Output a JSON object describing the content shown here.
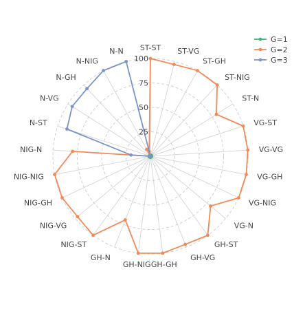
{
  "chart_data": {
    "type": "radar",
    "categories": [
      "ST-ST",
      "ST-VG",
      "ST-GH",
      "ST-NIG",
      "ST-N",
      "VG-ST",
      "VG-VG",
      "VG-GH",
      "VG-NIG",
      "VG-N",
      "GH-ST",
      "GH-VG",
      "GH-GH",
      "GH-NIG",
      "GH-N",
      "NIG-ST",
      "NIG-VG",
      "NIG-GH",
      "NIG-NIG",
      "NIG-N",
      "N-ST",
      "N-VG",
      "N-GH",
      "N-NIG",
      "N-N"
    ],
    "radial_ticks": [
      25,
      50,
      75,
      100
    ],
    "radial_range": [
      0,
      100
    ],
    "grid": true,
    "legend_position": "top-right",
    "series": [
      {
        "name": "G=1",
        "color": "#3cb371",
        "values": [
          1,
          1,
          1,
          1,
          1,
          1,
          1,
          1,
          1,
          1,
          1,
          1,
          1,
          1,
          1,
          1,
          1,
          1,
          1,
          1,
          1,
          1,
          1,
          1,
          1
        ]
      },
      {
        "name": "G=2",
        "color": "#f28a58",
        "values": [
          100,
          97,
          100,
          100,
          80,
          100,
          100,
          100,
          100,
          80,
          100,
          97,
          100,
          100,
          70,
          100,
          97,
          100,
          100,
          80,
          0,
          0,
          0,
          8,
          5
        ]
      },
      {
        "name": "G=3",
        "color": "#7b93c7",
        "values": [
          0,
          0,
          0,
          0,
          0,
          0,
          0,
          0,
          0,
          0,
          0,
          0,
          0,
          0,
          0,
          0,
          0,
          0,
          0,
          20,
          90,
          95,
          95,
          100,
          100
        ]
      }
    ]
  }
}
